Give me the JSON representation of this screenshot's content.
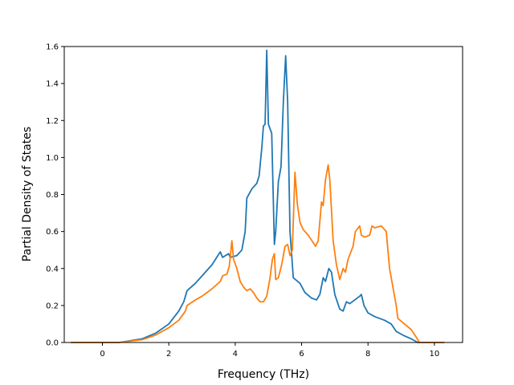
{
  "chart_data": {
    "type": "line",
    "title": "",
    "xlabel": "Frequency (THz)",
    "ylabel": "Partial Density of States",
    "xlim": [
      -1.15,
      10.85
    ],
    "ylim": [
      0,
      1.6
    ],
    "xticks": [
      0,
      2,
      4,
      6,
      8,
      10
    ],
    "xtick_labels": [
      "0",
      "2",
      "4",
      "6",
      "8",
      "10"
    ],
    "yticks": [
      0.0,
      0.2,
      0.4,
      0.6,
      0.8,
      1.0,
      1.2,
      1.4,
      1.6
    ],
    "ytick_labels": [
      "0.0",
      "0.2",
      "0.4",
      "0.6",
      "0.8",
      "1.0",
      "1.2",
      "1.4",
      "1.6"
    ],
    "grid": false,
    "legend": "none",
    "series": [
      {
        "color": "#1f77b4",
        "points": [
          [
            -0.95,
            0.0
          ],
          [
            0.5,
            0.0
          ],
          [
            1.2,
            0.02
          ],
          [
            1.6,
            0.05
          ],
          [
            2.0,
            0.1
          ],
          [
            2.3,
            0.17
          ],
          [
            2.45,
            0.22
          ],
          [
            2.55,
            0.28
          ],
          [
            2.8,
            0.32
          ],
          [
            3.0,
            0.36
          ],
          [
            3.3,
            0.42
          ],
          [
            3.55,
            0.49
          ],
          [
            3.62,
            0.46
          ],
          [
            3.8,
            0.48
          ],
          [
            3.85,
            0.46
          ],
          [
            4.05,
            0.47
          ],
          [
            4.2,
            0.5
          ],
          [
            4.3,
            0.6
          ],
          [
            4.35,
            0.78
          ],
          [
            4.5,
            0.83
          ],
          [
            4.65,
            0.86
          ],
          [
            4.72,
            0.9
          ],
          [
            4.8,
            1.05
          ],
          [
            4.85,
            1.17
          ],
          [
            4.9,
            1.18
          ],
          [
            4.95,
            1.58
          ],
          [
            5.0,
            1.18
          ],
          [
            5.1,
            1.13
          ],
          [
            5.18,
            0.53
          ],
          [
            5.22,
            0.6
          ],
          [
            5.3,
            0.87
          ],
          [
            5.38,
            0.95
          ],
          [
            5.45,
            1.3
          ],
          [
            5.52,
            1.55
          ],
          [
            5.58,
            1.3
          ],
          [
            5.65,
            0.6
          ],
          [
            5.75,
            0.35
          ],
          [
            5.95,
            0.32
          ],
          [
            6.1,
            0.27
          ],
          [
            6.3,
            0.24
          ],
          [
            6.45,
            0.23
          ],
          [
            6.55,
            0.26
          ],
          [
            6.65,
            0.35
          ],
          [
            6.72,
            0.33
          ],
          [
            6.82,
            0.4
          ],
          [
            6.9,
            0.38
          ],
          [
            7.0,
            0.26
          ],
          [
            7.15,
            0.18
          ],
          [
            7.25,
            0.17
          ],
          [
            7.35,
            0.22
          ],
          [
            7.45,
            0.21
          ],
          [
            7.6,
            0.23
          ],
          [
            7.75,
            0.25
          ],
          [
            7.8,
            0.26
          ],
          [
            7.88,
            0.2
          ],
          [
            8.0,
            0.16
          ],
          [
            8.2,
            0.14
          ],
          [
            8.5,
            0.12
          ],
          [
            8.7,
            0.1
          ],
          [
            8.85,
            0.06
          ],
          [
            9.05,
            0.04
          ],
          [
            9.3,
            0.02
          ],
          [
            9.5,
            0.0
          ],
          [
            10.3,
            0.0
          ]
        ]
      },
      {
        "color": "#ff7f0e",
        "points": [
          [
            -0.95,
            0.0
          ],
          [
            0.5,
            0.0
          ],
          [
            1.2,
            0.015
          ],
          [
            1.6,
            0.04
          ],
          [
            2.0,
            0.08
          ],
          [
            2.3,
            0.12
          ],
          [
            2.5,
            0.17
          ],
          [
            2.55,
            0.2
          ],
          [
            2.8,
            0.23
          ],
          [
            3.0,
            0.25
          ],
          [
            3.3,
            0.29
          ],
          [
            3.55,
            0.33
          ],
          [
            3.62,
            0.36
          ],
          [
            3.75,
            0.37
          ],
          [
            3.82,
            0.41
          ],
          [
            3.9,
            0.55
          ],
          [
            3.95,
            0.45
          ],
          [
            4.05,
            0.4
          ],
          [
            4.15,
            0.33
          ],
          [
            4.25,
            0.3
          ],
          [
            4.35,
            0.28
          ],
          [
            4.45,
            0.29
          ],
          [
            4.55,
            0.27
          ],
          [
            4.65,
            0.24
          ],
          [
            4.75,
            0.22
          ],
          [
            4.85,
            0.22
          ],
          [
            4.95,
            0.25
          ],
          [
            5.05,
            0.35
          ],
          [
            5.12,
            0.45
          ],
          [
            5.18,
            0.48
          ],
          [
            5.22,
            0.34
          ],
          [
            5.3,
            0.35
          ],
          [
            5.4,
            0.42
          ],
          [
            5.5,
            0.52
          ],
          [
            5.58,
            0.53
          ],
          [
            5.65,
            0.47
          ],
          [
            5.72,
            0.5
          ],
          [
            5.8,
            0.92
          ],
          [
            5.87,
            0.75
          ],
          [
            5.95,
            0.65
          ],
          [
            6.05,
            0.61
          ],
          [
            6.2,
            0.58
          ],
          [
            6.35,
            0.54
          ],
          [
            6.42,
            0.52
          ],
          [
            6.5,
            0.55
          ],
          [
            6.6,
            0.76
          ],
          [
            6.65,
            0.74
          ],
          [
            6.72,
            0.88
          ],
          [
            6.8,
            0.96
          ],
          [
            6.85,
            0.88
          ],
          [
            6.95,
            0.55
          ],
          [
            7.05,
            0.42
          ],
          [
            7.15,
            0.34
          ],
          [
            7.25,
            0.4
          ],
          [
            7.32,
            0.38
          ],
          [
            7.4,
            0.45
          ],
          [
            7.55,
            0.52
          ],
          [
            7.62,
            0.6
          ],
          [
            7.75,
            0.63
          ],
          [
            7.8,
            0.58
          ],
          [
            7.9,
            0.57
          ],
          [
            8.05,
            0.58
          ],
          [
            8.12,
            0.63
          ],
          [
            8.2,
            0.62
          ],
          [
            8.4,
            0.63
          ],
          [
            8.55,
            0.6
          ],
          [
            8.65,
            0.4
          ],
          [
            8.75,
            0.3
          ],
          [
            8.85,
            0.2
          ],
          [
            8.9,
            0.13
          ],
          [
            9.1,
            0.1
          ],
          [
            9.3,
            0.07
          ],
          [
            9.45,
            0.03
          ],
          [
            9.55,
            0.0
          ],
          [
            10.3,
            0.0
          ]
        ]
      }
    ]
  }
}
